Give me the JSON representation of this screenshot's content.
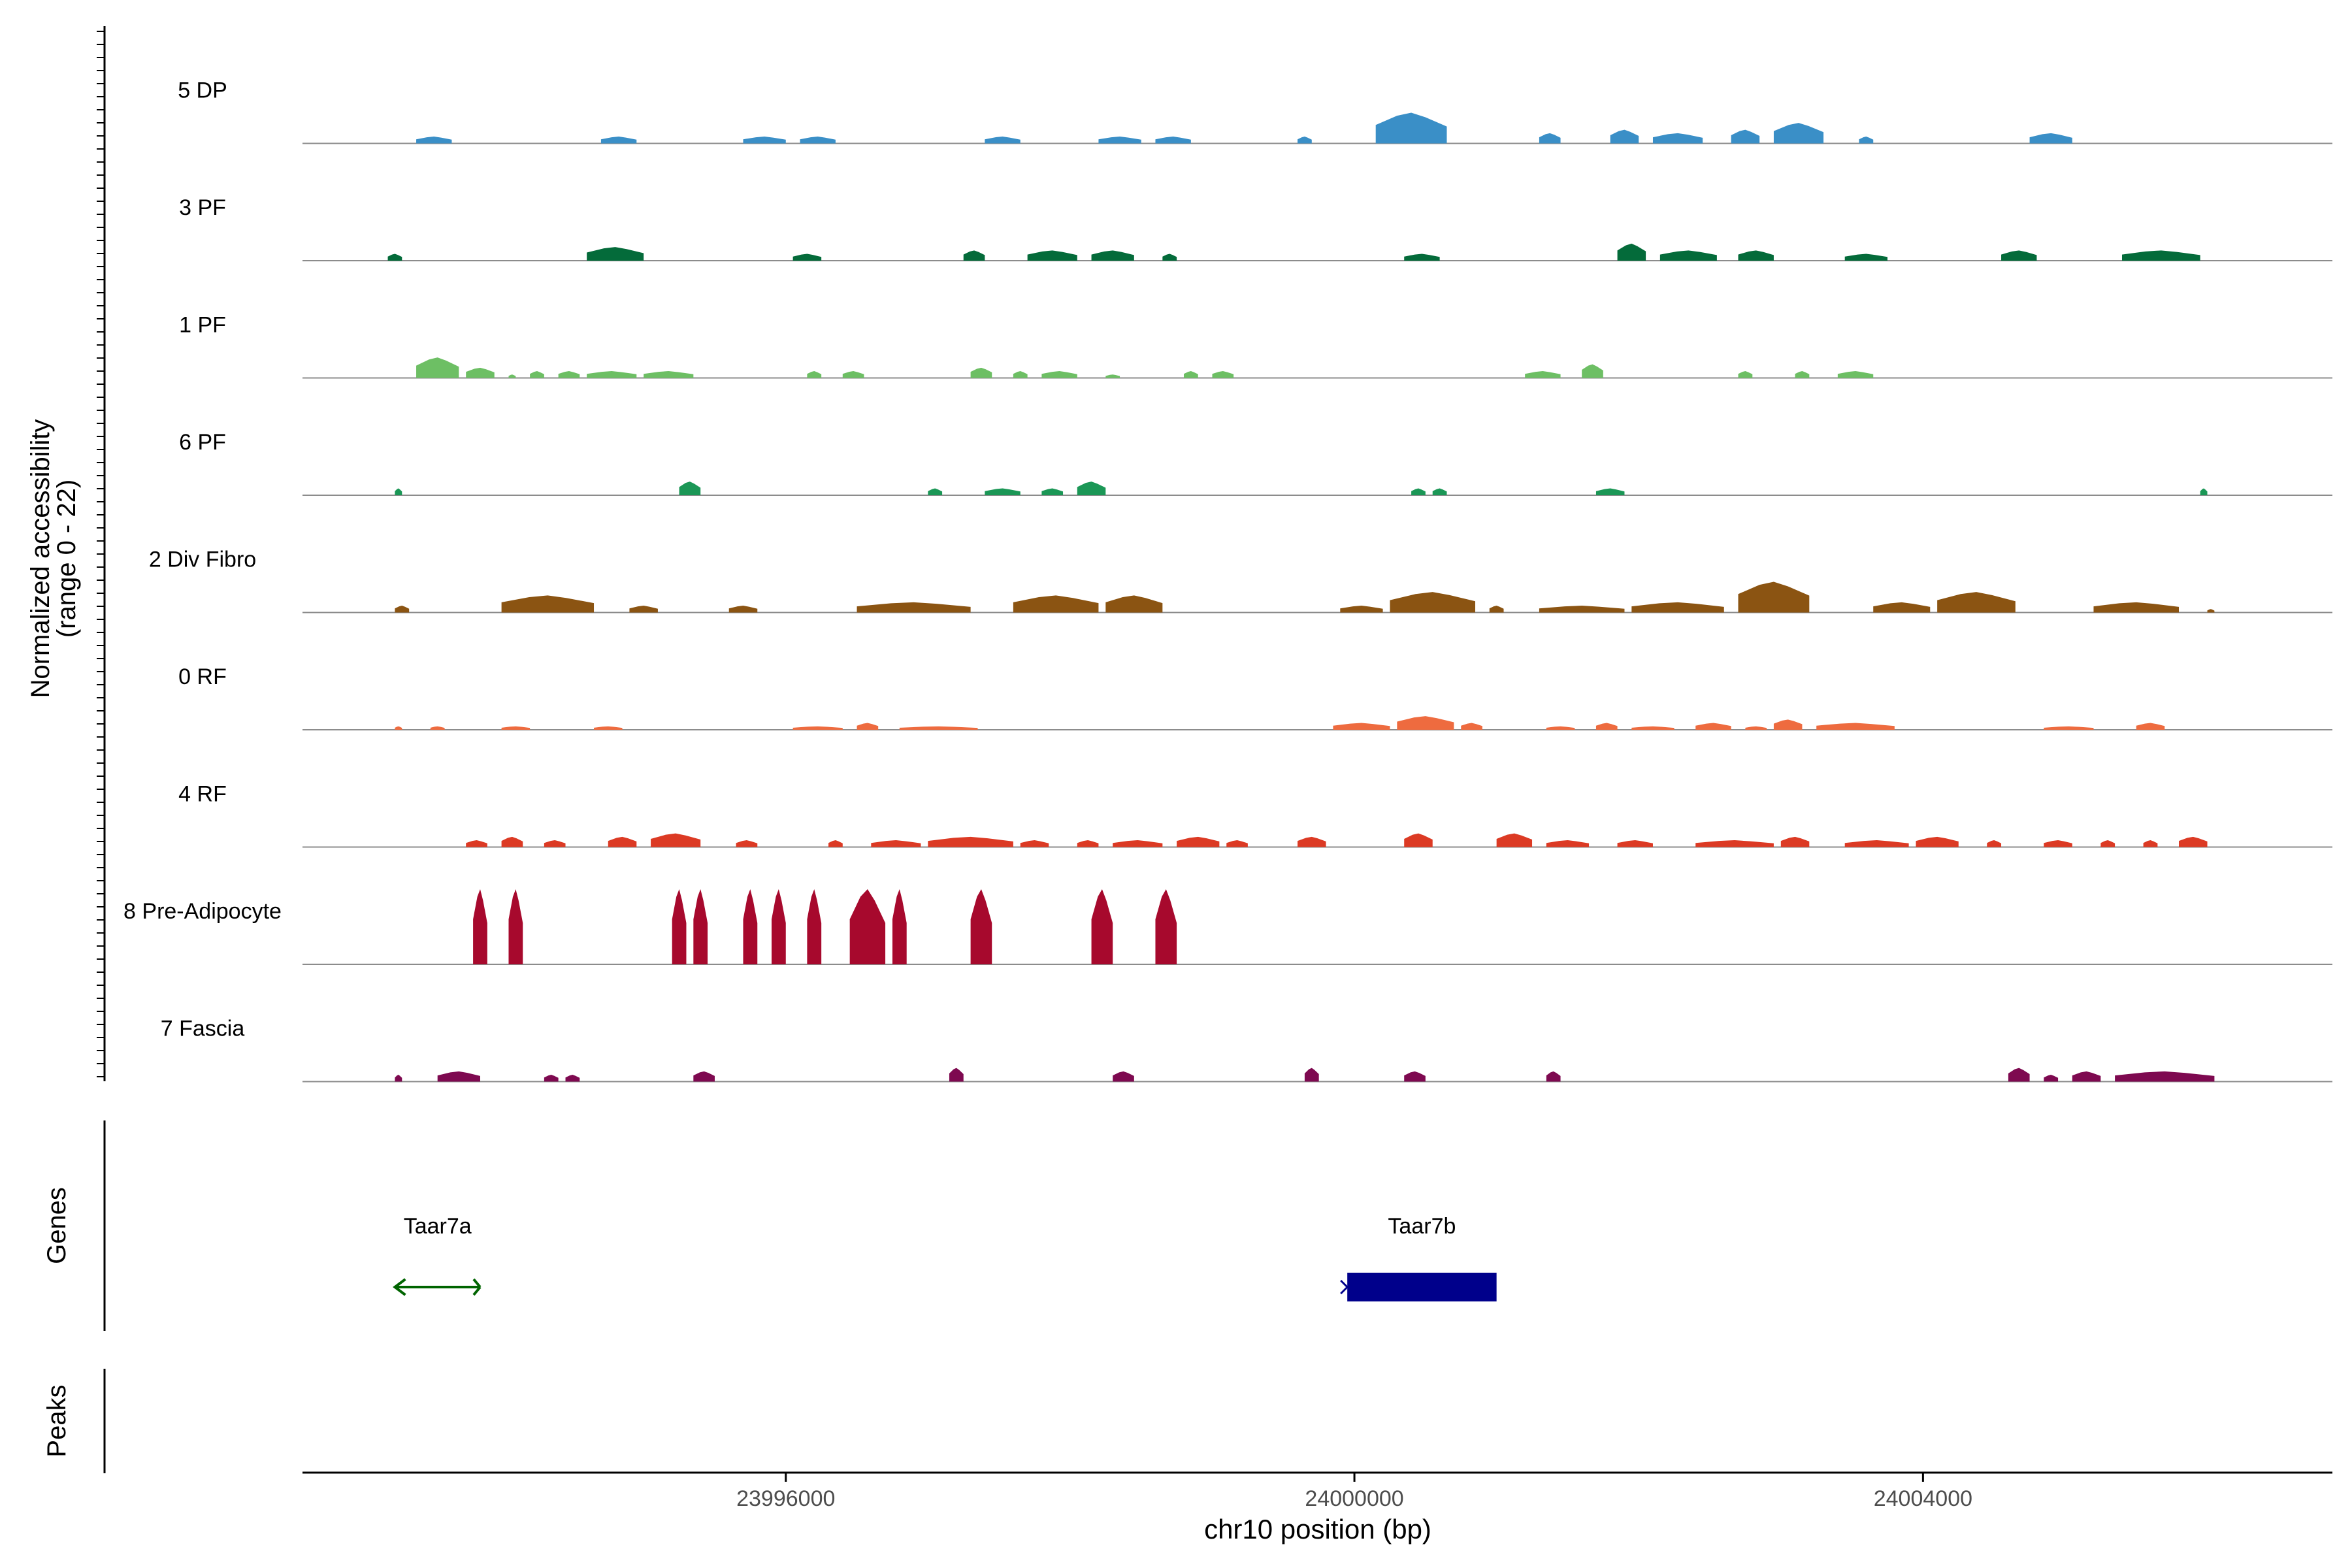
{
  "chart_data": {
    "type": "area",
    "title": "",
    "ylabel_line1": "Normalized accessibility",
    "ylabel_line2": "(range 0 - 22)",
    "xlabel": "chr10 position (bp)",
    "xlim": [
      23992600,
      24006880
    ],
    "x_ticks": [
      23996000,
      24000000,
      24004000
    ],
    "x_tick_labels": [
      "23996000",
      "24000000",
      "24004000"
    ],
    "ylim": [
      0,
      22
    ],
    "tracks": [
      {
        "name": "5 DP",
        "color": "#3a8fc7",
        "segments": [
          [
            23993400,
            23993650,
            2
          ],
          [
            23994700,
            23994950,
            2
          ],
          [
            23995700,
            23996000,
            2
          ],
          [
            23996100,
            23996350,
            2
          ],
          [
            23997400,
            23997650,
            2
          ],
          [
            23998200,
            23998500,
            2
          ],
          [
            23998600,
            23998850,
            2
          ],
          [
            23999600,
            23999700,
            2
          ],
          [
            24000150,
            24000650,
            9
          ],
          [
            24001300,
            24001450,
            3
          ],
          [
            24001800,
            24002000,
            4
          ],
          [
            24002100,
            24002450,
            3
          ],
          [
            24002650,
            24002850,
            4
          ],
          [
            24002950,
            24003300,
            6
          ],
          [
            24003550,
            24003650,
            2
          ],
          [
            24004750,
            24005050,
            3
          ]
        ]
      },
      {
        "name": "3 PF",
        "color": "#046b3a",
        "segments": [
          [
            23993200,
            23993300,
            2
          ],
          [
            23994600,
            23995000,
            4
          ],
          [
            23996050,
            23996250,
            2
          ],
          [
            23997250,
            23997400,
            3
          ],
          [
            23997700,
            23998050,
            3
          ],
          [
            23998150,
            23998450,
            3
          ],
          [
            23998650,
            23998750,
            2
          ],
          [
            24000350,
            24000600,
            2
          ],
          [
            24001850,
            24002050,
            5
          ],
          [
            24002150,
            24002550,
            3
          ],
          [
            24002700,
            24002950,
            3
          ],
          [
            24003450,
            24003750,
            2
          ],
          [
            24004550,
            24004800,
            3
          ],
          [
            24005400,
            24005950,
            3
          ]
        ]
      },
      {
        "name": "1 PF",
        "color": "#6dbf64",
        "segments": [
          [
            23993400,
            23993700,
            6
          ],
          [
            23993750,
            23993950,
            3
          ],
          [
            23994050,
            23994100,
            1
          ],
          [
            23994200,
            23994300,
            2
          ],
          [
            23994400,
            23994550,
            2
          ],
          [
            23994600,
            23994950,
            2
          ],
          [
            23995000,
            23995350,
            2
          ],
          [
            23996150,
            23996250,
            2
          ],
          [
            23996400,
            23996550,
            2
          ],
          [
            23997300,
            23997450,
            3
          ],
          [
            23997600,
            23997700,
            2
          ],
          [
            23997800,
            23998050,
            2
          ],
          [
            23998250,
            23998350,
            1
          ],
          [
            23998800,
            23998900,
            2
          ],
          [
            23999000,
            23999150,
            2
          ],
          [
            24001200,
            24001450,
            2
          ],
          [
            24001600,
            24001750,
            4
          ],
          [
            24002700,
            24002800,
            2
          ],
          [
            24003100,
            24003200,
            2
          ],
          [
            24003400,
            24003650,
            2
          ]
        ]
      },
      {
        "name": "6 PF",
        "color": "#1b9756",
        "segments": [
          [
            23993250,
            23993300,
            2
          ],
          [
            23995250,
            23995400,
            4
          ],
          [
            23997000,
            23997100,
            2
          ],
          [
            23997400,
            23997650,
            2
          ],
          [
            23997800,
            23997950,
            2
          ],
          [
            23998050,
            23998250,
            4
          ],
          [
            24000400,
            24000500,
            2
          ],
          [
            24000550,
            24000650,
            2
          ],
          [
            24001700,
            24001900,
            2
          ],
          [
            24005950,
            24006000,
            2
          ]
        ]
      },
      {
        "name": "2 Div Fibro",
        "color": "#8b5412",
        "segments": [
          [
            23993250,
            23993350,
            2
          ],
          [
            23994000,
            23994650,
            5
          ],
          [
            23994900,
            23995100,
            2
          ],
          [
            23995600,
            23995800,
            2
          ],
          [
            23996500,
            23997300,
            3
          ],
          [
            23997600,
            23998200,
            5
          ],
          [
            23998250,
            23998650,
            5
          ],
          [
            23999900,
            24000200,
            2
          ],
          [
            24000250,
            24000850,
            6
          ],
          [
            24000950,
            24001050,
            2
          ],
          [
            24001300,
            24001900,
            2
          ],
          [
            24001950,
            24002600,
            3
          ],
          [
            24002700,
            24003200,
            9
          ],
          [
            24003650,
            24004050,
            3
          ],
          [
            24004100,
            24004650,
            6
          ],
          [
            24005200,
            24005800,
            3
          ],
          [
            24006000,
            24006050,
            1
          ]
        ]
      },
      {
        "name": "0 RF",
        "color": "#ee6b3f",
        "segments": [
          [
            23993250,
            23993300,
            1
          ],
          [
            23993500,
            23993600,
            1
          ],
          [
            23994000,
            23994200,
            1
          ],
          [
            23994650,
            23994850,
            1
          ],
          [
            23996050,
            23996400,
            1
          ],
          [
            23996500,
            23996650,
            2
          ],
          [
            23996800,
            23997350,
            1
          ],
          [
            23999850,
            24000250,
            2
          ],
          [
            24000300,
            24000700,
            4
          ],
          [
            24000750,
            24000900,
            2
          ],
          [
            24001350,
            24001550,
            1
          ],
          [
            24001700,
            24001850,
            2
          ],
          [
            24001950,
            24002250,
            1
          ],
          [
            24002400,
            24002650,
            2
          ],
          [
            24002750,
            24002900,
            1
          ],
          [
            24002950,
            24003150,
            3
          ],
          [
            24003250,
            24003800,
            2
          ],
          [
            24004850,
            24005200,
            1
          ],
          [
            24005500,
            24005700,
            2
          ]
        ]
      },
      {
        "name": "4 RF",
        "color": "#dc3a24",
        "segments": [
          [
            23993750,
            23993900,
            2
          ],
          [
            23994000,
            23994150,
            3
          ],
          [
            23994300,
            23994450,
            2
          ],
          [
            23994750,
            23994950,
            3
          ],
          [
            23995050,
            23995400,
            4
          ],
          [
            23995650,
            23995800,
            2
          ],
          [
            23996300,
            23996400,
            2
          ],
          [
            23996600,
            23996950,
            2
          ],
          [
            23997000,
            23997600,
            3
          ],
          [
            23997650,
            23997850,
            2
          ],
          [
            23998050,
            23998200,
            2
          ],
          [
            23998300,
            23998650,
            2
          ],
          [
            23998750,
            23999050,
            3
          ],
          [
            23999100,
            23999250,
            2
          ],
          [
            23999600,
            23999800,
            3
          ],
          [
            24000350,
            24000550,
            4
          ],
          [
            24001000,
            24001250,
            4
          ],
          [
            24001350,
            24001650,
            2
          ],
          [
            24001850,
            24002100,
            2
          ],
          [
            24002400,
            24002950,
            2
          ],
          [
            24003000,
            24003200,
            3
          ],
          [
            24003450,
            24003900,
            2
          ],
          [
            24003950,
            24004250,
            3
          ],
          [
            24004450,
            24004550,
            2
          ],
          [
            24004850,
            24005050,
            2
          ],
          [
            24005250,
            24005350,
            2
          ],
          [
            24005550,
            24005650,
            2
          ],
          [
            24005800,
            24006000,
            3
          ]
        ]
      },
      {
        "name": "8 Pre-Adipocyte",
        "color": "#a7092d",
        "segments": [
          [
            23993800,
            23993900,
            22
          ],
          [
            23994050,
            23994150,
            22
          ],
          [
            23995200,
            23995300,
            22
          ],
          [
            23995350,
            23995450,
            22
          ],
          [
            23995700,
            23995800,
            22
          ],
          [
            23995900,
            23996000,
            22
          ],
          [
            23996150,
            23996250,
            22
          ],
          [
            23996450,
            23996700,
            22
          ],
          [
            23996750,
            23996850,
            22
          ],
          [
            23997300,
            23997450,
            22
          ],
          [
            23998150,
            23998300,
            22
          ],
          [
            23998600,
            23998750,
            22
          ]
        ]
      },
      {
        "name": "7 Fascia",
        "color": "#7e0950",
        "segments": [
          [
            23993250,
            23993300,
            2
          ],
          [
            23993550,
            23993850,
            3
          ],
          [
            23994300,
            23994400,
            2
          ],
          [
            23994450,
            23994550,
            2
          ],
          [
            23995350,
            23995500,
            3
          ],
          [
            23997150,
            23997250,
            4
          ],
          [
            23998300,
            23998450,
            3
          ],
          [
            23999650,
            23999750,
            4
          ],
          [
            24000350,
            24000500,
            3
          ],
          [
            24001350,
            24001450,
            3
          ],
          [
            24004600,
            24004750,
            4
          ],
          [
            24004850,
            24004950,
            2
          ],
          [
            24005050,
            24005250,
            3
          ],
          [
            24005350,
            24006050,
            3
          ]
        ]
      }
    ],
    "genes": [
      {
        "name": "Taar7a",
        "start": 23993250,
        "end": 23993850,
        "strand": "-",
        "color": "#006400"
      },
      {
        "name": "Taar7b",
        "start": 23999950,
        "end": 24001000,
        "strand": "+",
        "color": "#00008b"
      }
    ],
    "panel_labels": {
      "genes": "Genes",
      "peaks": "Peaks"
    }
  }
}
